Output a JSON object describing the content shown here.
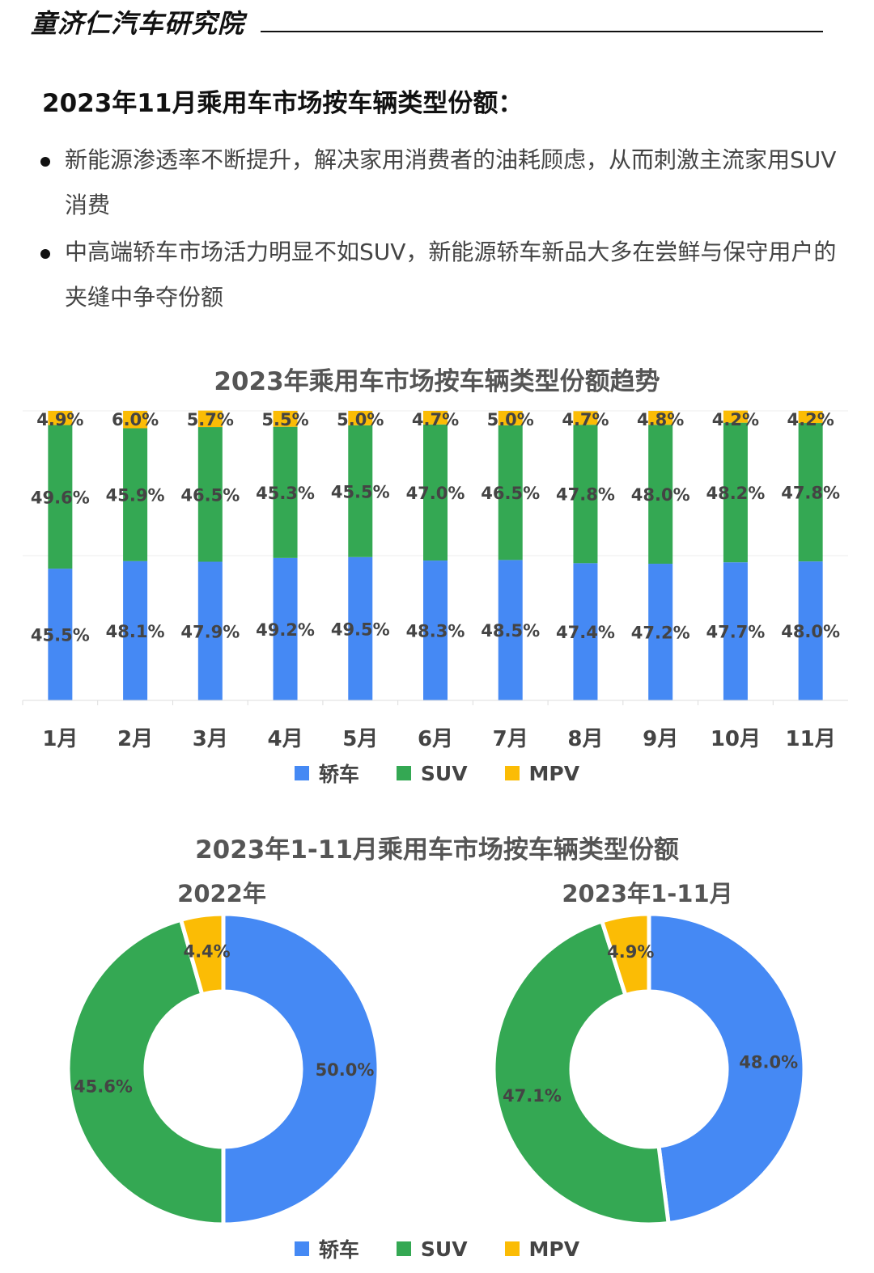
{
  "header": {
    "brand": "童济仁汽车研究院",
    "headline": "2023年11月乘用车市场按车辆类型份额："
  },
  "bullets": [
    "新能源渗透率不断提升，解决家用消费者的油耗顾虑，从而刺激主流家用SUV消费",
    "中高端轿车市场活力明显不如SUV，新能源轿车新品大多在尝鲜与保守用户的夹缝中争夺份额"
  ],
  "colors": {
    "sedan": "#4589F4",
    "suv": "#34A853",
    "mpv": "#FBBC05"
  },
  "chart_data": [
    {
      "type": "bar",
      "stacked": true,
      "title": "2023年乘用车市场按车辆类型份额趋势",
      "categories": [
        "1月",
        "2月",
        "3月",
        "4月",
        "5月",
        "6月",
        "7月",
        "8月",
        "9月",
        "10月",
        "11月"
      ],
      "series": [
        {
          "name": "轿车",
          "values": [
            45.5,
            48.1,
            47.9,
            49.2,
            49.5,
            48.3,
            48.5,
            47.4,
            47.2,
            47.7,
            48.0
          ],
          "labels": [
            "45.5%",
            "48.1%",
            "47.9%",
            "49.2%",
            "49.5%",
            "48.3%",
            "48.5%",
            "47.4%",
            "47.2%",
            "47.7%",
            "48.0%"
          ]
        },
        {
          "name": "SUV",
          "values": [
            49.6,
            45.9,
            46.5,
            45.3,
            45.5,
            47.0,
            46.5,
            47.8,
            48.0,
            48.2,
            47.8
          ],
          "labels": [
            "49.6%",
            "45.9%",
            "46.5%",
            "45.3%",
            "45.5%",
            "47.0%",
            "46.5%",
            "47.8%",
            "48.0%",
            "48.2%",
            "47.8%"
          ]
        },
        {
          "name": "MPV",
          "values": [
            4.9,
            6.0,
            5.7,
            5.5,
            5.0,
            4.7,
            5.0,
            4.7,
            4.8,
            4.2,
            4.2
          ],
          "labels": [
            "4.9%",
            "6.0%",
            "5.7%",
            "5.5%",
            "5.0%",
            "4.7%",
            "5.0%",
            "4.7%",
            "4.8%",
            "4.2%",
            "4.2%"
          ]
        }
      ],
      "ylim": [
        0,
        100
      ],
      "legend": "bottom",
      "grid": true
    },
    {
      "type": "pie",
      "donut": true,
      "group_title": "2023年1-11月乘用车市场按车辆类型份额",
      "title": "2022年",
      "labels": [
        "轿车",
        "SUV",
        "MPV"
      ],
      "values": [
        50.0,
        45.6,
        4.4
      ],
      "value_labels": [
        "50.0%",
        "45.6%",
        "4.4%"
      ]
    },
    {
      "type": "pie",
      "donut": true,
      "title": "2023年1-11月",
      "labels": [
        "轿车",
        "SUV",
        "MPV"
      ],
      "values": [
        48.0,
        47.1,
        4.9
      ],
      "value_labels": [
        "48.0%",
        "47.1%",
        "4.9%"
      ]
    }
  ]
}
